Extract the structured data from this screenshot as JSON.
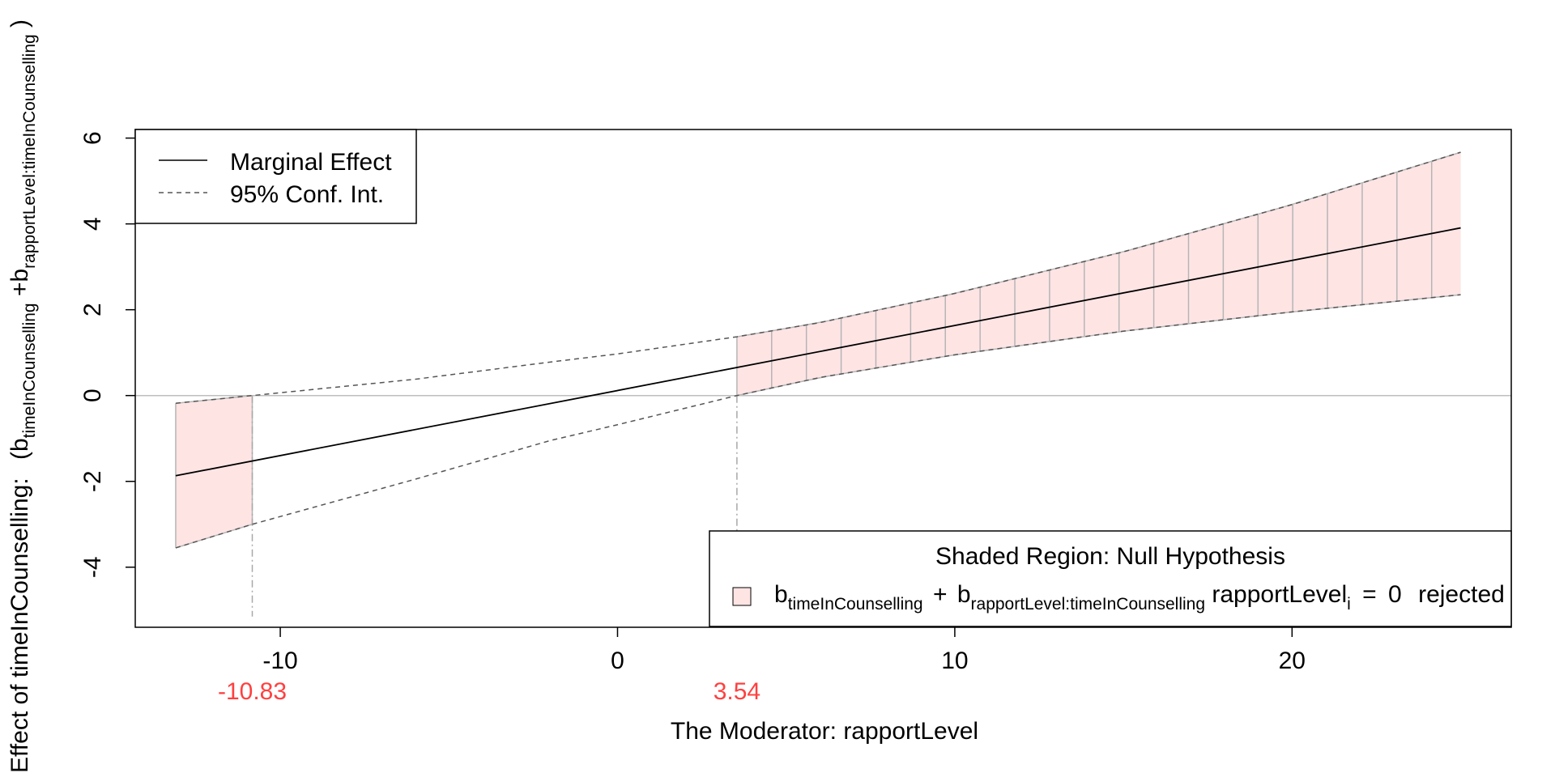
{
  "chart_data": {
    "type": "line",
    "ylabel_text": "Effect of timeInCounselling:",
    "ylabel_math": {
      "b1_sub": "timeInCounselling",
      "plus": "+",
      "b2_sub": "rapportLevel:timeInCounselling"
    },
    "xlabel": "The Moderator:  rapportLevel",
    "xlim": [
      -14.3,
      26.5
    ],
    "ylim": [
      -5.4,
      6.2
    ],
    "x_ticks": [
      -10,
      0,
      10,
      20
    ],
    "x_tick_labels": [
      "-10",
      "0",
      "10",
      "20"
    ],
    "y_ticks": [
      -4,
      -2,
      0,
      2,
      4,
      6
    ],
    "y_tick_labels": [
      "-4",
      "-2",
      "0",
      "2",
      "4",
      "6"
    ],
    "marginal_effect": {
      "intercept": 0.117,
      "slope": 0.1516,
      "x_range": [
        -13.1,
        25.0
      ]
    },
    "ci_lower_points": [
      [
        -13.1,
        -3.55
      ],
      [
        -10.83,
        -3.0
      ],
      [
        -6,
        -1.95
      ],
      [
        -2,
        -1.05
      ],
      [
        0,
        -0.68
      ],
      [
        3.54,
        0.0
      ],
      [
        6,
        0.42
      ],
      [
        10,
        0.95
      ],
      [
        15,
        1.5
      ],
      [
        20,
        1.95
      ],
      [
        25,
        2.35
      ]
    ],
    "ci_upper_points": [
      [
        -13.1,
        -0.18
      ],
      [
        -10.83,
        0.0
      ],
      [
        -6,
        0.38
      ],
      [
        -2,
        0.78
      ],
      [
        0,
        0.97
      ],
      [
        3.54,
        1.37
      ],
      [
        6,
        1.7
      ],
      [
        10,
        2.38
      ],
      [
        15,
        3.35
      ],
      [
        20,
        4.45
      ],
      [
        25,
        5.67
      ]
    ],
    "significance_bounds": [
      -10.83,
      3.54
    ],
    "significance_bound_labels": [
      "-10.83",
      "3.54"
    ],
    "shaded_regions": [
      [
        -13.1,
        -10.83
      ],
      [
        3.54,
        25.0
      ]
    ],
    "legend_lines": {
      "position": "top-left",
      "items": [
        {
          "label": "Marginal Effect",
          "style": "solid"
        },
        {
          "label": "95% Conf. Int.",
          "style": "dashed"
        }
      ]
    },
    "legend_region": {
      "position": "bottom-right",
      "title": "Shaded Region: Null Hypothesis",
      "b1_sub": "timeInCounselling",
      "plus": "+",
      "b2_sub": "rapportLevel:timeInCounselling",
      "var_name": "rapportLevel",
      "var_sub": "i",
      "equals": "=",
      "zero": "0",
      "suffix": "rejected"
    },
    "grid": false,
    "colors": {
      "shade_fill": "#FFE4E4",
      "shade_edge": "#B5B5B5",
      "zero_line": "#BEBEBE",
      "ci_line": "#555555",
      "bound_label": "#FF4040",
      "bound_line": "#A8A8A8"
    }
  }
}
